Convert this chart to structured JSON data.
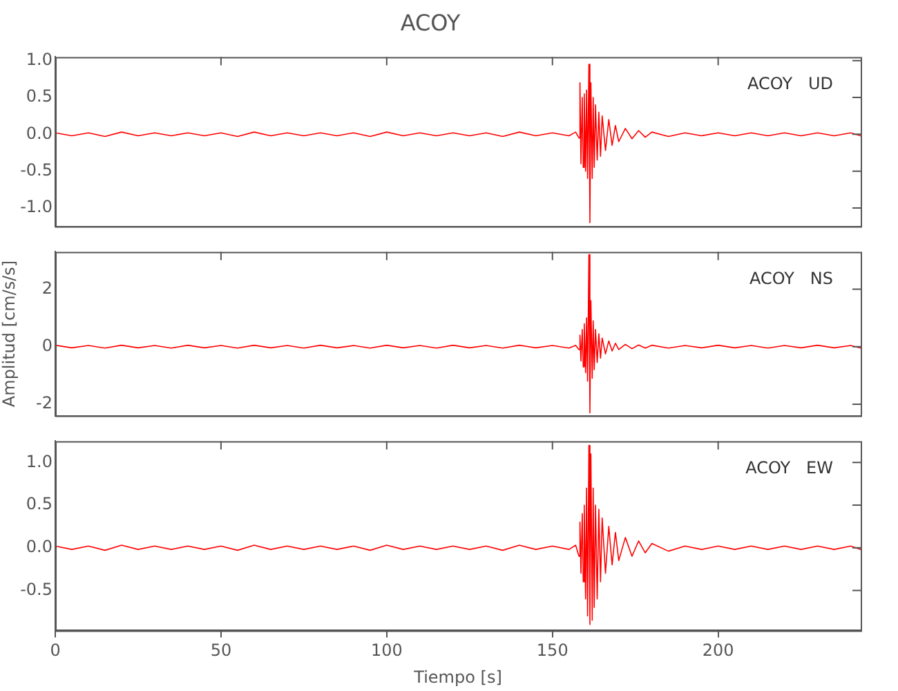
{
  "chart_data": [
    {
      "type": "line",
      "title": "ACOY",
      "annotations": [
        "ACOY   UD"
      ],
      "xlim": [
        0,
        243
      ],
      "xticks": [
        0,
        50,
        100,
        150,
        200
      ],
      "ylim": [
        -1.25,
        1.05
      ],
      "yticks": [
        {
          "value": -1,
          "label": "-1.0"
        },
        -0.5,
        {
          "value": 0,
          "label": "0.0"
        },
        0.5,
        {
          "value": 1,
          "label": "1.0"
        }
      ],
      "tick_labels": "y",
      "grid": false,
      "legend": false,
      "marker": "none",
      "x": [
        0,
        5,
        10,
        15,
        20,
        25,
        30,
        35,
        40,
        45,
        50,
        55,
        60,
        65,
        70,
        75,
        80,
        85,
        90,
        95,
        100,
        105,
        110,
        115,
        120,
        125,
        130,
        135,
        140,
        145,
        150,
        155,
        157,
        158,
        158.3,
        158.6,
        159,
        159.3,
        159.6,
        160,
        160.3,
        160.6,
        161,
        161.3,
        161.6,
        162,
        162.3,
        162.6,
        163,
        163.5,
        164,
        164.5,
        165,
        166,
        167,
        168,
        169,
        170,
        172,
        174,
        176,
        178,
        180,
        185,
        190,
        195,
        200,
        205,
        210,
        215,
        220,
        225,
        230,
        235,
        240,
        243
      ],
      "series": [
        {
          "color": "#ff0000",
          "values": [
            0.02,
            -0.02,
            0.02,
            -0.03,
            0.03,
            -0.02,
            0.02,
            -0.02,
            0.02,
            -0.02,
            0.02,
            -0.03,
            0.03,
            -0.02,
            0.02,
            -0.02,
            0.02,
            -0.02,
            0.02,
            -0.03,
            0.03,
            -0.02,
            0.02,
            -0.02,
            0.02,
            -0.02,
            0.02,
            -0.03,
            0.03,
            -0.02,
            0.02,
            -0.02,
            0.03,
            -0.05,
            0.7,
            -0.4,
            0.5,
            -0.45,
            0.55,
            -0.5,
            0.6,
            -0.6,
            0.95,
            -1.2,
            0.7,
            -0.6,
            0.5,
            -0.45,
            0.4,
            -0.35,
            0.3,
            -0.3,
            0.25,
            -0.22,
            0.2,
            -0.15,
            0.12,
            -0.1,
            0.08,
            -0.06,
            0.05,
            -0.04,
            0.03,
            -0.03,
            0.02,
            -0.02,
            0.02,
            -0.02,
            0.02,
            -0.02,
            0.02,
            -0.02,
            0.02,
            -0.02,
            0.02,
            -0.02
          ]
        }
      ]
    },
    {
      "type": "line",
      "ylabel": "Amplitud [cm/s/s]",
      "annotations": [
        "ACOY   NS"
      ],
      "xlim": [
        0,
        243
      ],
      "xticks": [
        0,
        50,
        100,
        150,
        200
      ],
      "ylim": [
        -2.4,
        3.3
      ],
      "yticks": [
        -2,
        0,
        2
      ],
      "tick_labels": "y",
      "grid": false,
      "legend": false,
      "marker": "none",
      "x": [
        0,
        5,
        10,
        15,
        20,
        25,
        30,
        35,
        40,
        45,
        50,
        55,
        60,
        65,
        70,
        75,
        80,
        85,
        90,
        95,
        100,
        105,
        110,
        115,
        120,
        125,
        130,
        135,
        140,
        145,
        150,
        155,
        157,
        158,
        158.3,
        158.6,
        159,
        159.3,
        159.6,
        160,
        160.3,
        160.6,
        161,
        161.3,
        161.6,
        162,
        162.3,
        162.6,
        163,
        163.5,
        164,
        164.5,
        165,
        166,
        167,
        168,
        169,
        170,
        172,
        174,
        176,
        178,
        180,
        185,
        190,
        195,
        200,
        205,
        210,
        215,
        220,
        225,
        230,
        235,
        240,
        243
      ],
      "series": [
        {
          "color": "#ff0000",
          "values": [
            0.05,
            -0.04,
            0.04,
            -0.05,
            0.05,
            -0.04,
            0.04,
            -0.05,
            0.05,
            -0.04,
            0.04,
            -0.05,
            0.05,
            -0.04,
            0.04,
            -0.05,
            0.05,
            -0.04,
            0.04,
            -0.05,
            0.05,
            -0.04,
            0.04,
            -0.05,
            0.05,
            -0.04,
            0.04,
            -0.05,
            0.05,
            -0.04,
            0.04,
            -0.05,
            0.05,
            -0.1,
            0.4,
            -0.5,
            0.6,
            -0.7,
            0.8,
            -0.9,
            1.0,
            -1.2,
            3.2,
            -2.3,
            1.6,
            -1.1,
            0.9,
            -0.8,
            0.6,
            -0.55,
            0.45,
            -0.4,
            0.3,
            -0.25,
            0.2,
            -0.15,
            0.12,
            -0.1,
            0.08,
            -0.07,
            0.06,
            -0.05,
            0.05,
            -0.05,
            0.04,
            -0.04,
            0.05,
            -0.04,
            0.04,
            -0.05,
            0.04,
            -0.04,
            0.05,
            -0.04,
            0.04,
            -0.05
          ]
        }
      ]
    },
    {
      "type": "line",
      "xlabel": "Tiempo [s]",
      "annotations": [
        "ACOY   EW"
      ],
      "xlim": [
        0,
        243
      ],
      "xticks": [
        0,
        50,
        100,
        150,
        200
      ],
      "ylim": [
        -0.97,
        1.25
      ],
      "yticks": [
        -0.5,
        {
          "value": 0,
          "label": "0.0"
        },
        0.5,
        {
          "value": 1,
          "label": "1.0"
        }
      ],
      "grid": false,
      "legend": false,
      "marker": "none",
      "x": [
        0,
        5,
        10,
        15,
        20,
        25,
        30,
        35,
        40,
        45,
        50,
        55,
        60,
        65,
        70,
        75,
        80,
        85,
        90,
        95,
        100,
        105,
        110,
        115,
        120,
        125,
        130,
        135,
        140,
        145,
        150,
        155,
        157,
        158,
        158.3,
        158.6,
        159,
        159.3,
        159.6,
        160,
        160.3,
        160.6,
        161,
        161.3,
        161.6,
        162,
        162.3,
        162.6,
        163,
        163.5,
        164,
        164.5,
        165,
        166,
        167,
        168,
        169,
        170,
        172,
        174,
        176,
        178,
        180,
        185,
        190,
        195,
        200,
        205,
        210,
        215,
        220,
        225,
        230,
        235,
        240,
        243
      ],
      "series": [
        {
          "color": "#ff0000",
          "values": [
            0.02,
            -0.02,
            0.02,
            -0.03,
            0.03,
            -0.02,
            0.02,
            -0.02,
            0.02,
            -0.02,
            0.02,
            -0.03,
            0.03,
            -0.02,
            0.02,
            -0.02,
            0.02,
            -0.02,
            0.02,
            -0.03,
            0.03,
            -0.02,
            0.02,
            -0.02,
            0.02,
            -0.02,
            0.02,
            -0.03,
            0.03,
            -0.02,
            0.02,
            -0.02,
            0.03,
            -0.1,
            0.3,
            -0.3,
            0.4,
            -0.4,
            0.5,
            -0.6,
            0.7,
            -0.8,
            1.2,
            -0.9,
            1.1,
            -0.85,
            0.7,
            -0.7,
            0.5,
            -0.6,
            0.45,
            -0.4,
            0.35,
            -0.3,
            0.25,
            -0.2,
            0.18,
            -0.15,
            0.12,
            -0.1,
            0.08,
            -0.06,
            0.05,
            -0.04,
            0.02,
            -0.02,
            0.02,
            -0.02,
            0.02,
            -0.02,
            0.02,
            -0.02,
            0.02,
            -0.02,
            0.02,
            -0.02
          ]
        }
      ]
    }
  ]
}
